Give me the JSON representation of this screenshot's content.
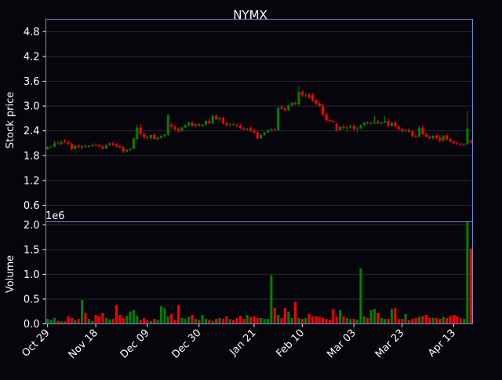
{
  "chart_data": {
    "type": "candlestick",
    "title": "NYMX",
    "price_panel": {
      "ylabel": "Stock price",
      "ylim": [
        0.2,
        5.1
      ],
      "yticks": [
        "0.6",
        "1.2",
        "1.8",
        "2.4",
        "3.0",
        "3.6",
        "4.2",
        "4.8"
      ],
      "grid": true
    },
    "volume_panel": {
      "ylabel": "Volume",
      "ylim": [
        0,
        2.06
      ],
      "scale_label": "1e6",
      "yticks": [
        "0.0",
        "0.5",
        "1.0",
        "1.5",
        "2.0"
      ],
      "grid": true
    },
    "x_tick_labels": [
      "Oct 29",
      "Nov 18",
      "Dec 09",
      "Dec 30",
      "Jan 21",
      "Feb 10",
      "Mar 03",
      "Mar 23",
      "Apr 13"
    ],
    "x_tick_index": [
      0,
      14,
      29,
      44,
      60,
      74,
      89,
      103,
      118
    ],
    "up_color": "#008000",
    "down_color": "#ff0000",
    "candles": [
      [
        1.96,
        2.03,
        1.94,
        2.01
      ],
      [
        2.01,
        2.05,
        1.98,
        2.02
      ],
      [
        2.02,
        2.15,
        2.0,
        2.1
      ],
      [
        2.1,
        2.16,
        2.07,
        2.08
      ],
      [
        2.08,
        2.16,
        2.05,
        2.14
      ],
      [
        2.14,
        2.2,
        2.1,
        2.12
      ],
      [
        2.12,
        2.18,
        2.06,
        2.08
      ],
      [
        2.08,
        2.12,
        1.93,
        1.96
      ],
      [
        1.96,
        2.06,
        1.94,
        2.04
      ],
      [
        2.04,
        2.08,
        1.98,
        2.0
      ],
      [
        2.0,
        2.05,
        1.96,
        2.03
      ],
      [
        2.03,
        2.08,
        2.0,
        2.01
      ],
      [
        2.01,
        2.05,
        1.98,
        2.04
      ],
      [
        2.04,
        2.1,
        2.0,
        2.06
      ],
      [
        2.06,
        2.1,
        2.02,
        2.05
      ],
      [
        2.05,
        2.09,
        2.0,
        2.02
      ],
      [
        2.02,
        2.06,
        1.95,
        1.97
      ],
      [
        1.97,
        2.08,
        1.96,
        2.06
      ],
      [
        2.06,
        2.12,
        2.03,
        2.1
      ],
      [
        2.1,
        2.14,
        2.04,
        2.06
      ],
      [
        2.06,
        2.1,
        2.0,
        2.03
      ],
      [
        2.03,
        2.06,
        1.97,
        2.0
      ],
      [
        2.0,
        2.04,
        1.86,
        1.9
      ],
      [
        1.9,
        1.96,
        1.88,
        1.94
      ],
      [
        1.94,
        1.98,
        1.9,
        1.96
      ],
      [
        1.96,
        2.24,
        1.95,
        2.22
      ],
      [
        2.2,
        2.55,
        2.18,
        2.48
      ],
      [
        2.48,
        2.56,
        2.28,
        2.32
      ],
      [
        2.32,
        2.38,
        2.2,
        2.25
      ],
      [
        2.25,
        2.3,
        2.18,
        2.22
      ],
      [
        2.22,
        2.32,
        2.16,
        2.3
      ],
      [
        2.3,
        2.34,
        2.18,
        2.2
      ],
      [
        2.2,
        2.26,
        2.15,
        2.24
      ],
      [
        2.24,
        2.32,
        2.2,
        2.28
      ],
      [
        2.28,
        2.34,
        2.24,
        2.3
      ],
      [
        2.3,
        2.8,
        2.28,
        2.78
      ],
      [
        2.55,
        2.6,
        2.45,
        2.5
      ],
      [
        2.5,
        2.54,
        2.4,
        2.44
      ],
      [
        2.44,
        2.48,
        2.36,
        2.4
      ],
      [
        2.4,
        2.5,
        2.38,
        2.48
      ],
      [
        2.48,
        2.56,
        2.46,
        2.54
      ],
      [
        2.54,
        2.62,
        2.5,
        2.6
      ],
      [
        2.6,
        2.64,
        2.5,
        2.52
      ],
      [
        2.52,
        2.58,
        2.48,
        2.56
      ],
      [
        2.56,
        2.6,
        2.5,
        2.52
      ],
      [
        2.52,
        2.56,
        2.48,
        2.55
      ],
      [
        2.55,
        2.68,
        2.52,
        2.64
      ],
      [
        2.64,
        2.7,
        2.55,
        2.58
      ],
      [
        2.58,
        2.8,
        2.56,
        2.76
      ],
      [
        2.76,
        2.8,
        2.66,
        2.68
      ],
      [
        2.68,
        2.74,
        2.62,
        2.72
      ],
      [
        2.72,
        2.76,
        2.56,
        2.58
      ],
      [
        2.58,
        2.62,
        2.5,
        2.54
      ],
      [
        2.54,
        2.6,
        2.5,
        2.56
      ],
      [
        2.56,
        2.6,
        2.52,
        2.54
      ],
      [
        2.54,
        2.58,
        2.48,
        2.52
      ],
      [
        2.52,
        2.56,
        2.44,
        2.46
      ],
      [
        2.46,
        2.5,
        2.4,
        2.44
      ],
      [
        2.44,
        2.48,
        2.4,
        2.46
      ],
      [
        2.46,
        2.5,
        2.38,
        2.4
      ],
      [
        2.4,
        2.46,
        2.34,
        2.36
      ],
      [
        2.36,
        2.4,
        2.18,
        2.22
      ],
      [
        2.22,
        2.32,
        2.2,
        2.3
      ],
      [
        2.3,
        2.38,
        2.28,
        2.36
      ],
      [
        2.36,
        2.44,
        2.34,
        2.42
      ],
      [
        2.42,
        2.48,
        2.38,
        2.44
      ],
      [
        2.44,
        2.48,
        2.4,
        2.42
      ],
      [
        2.42,
        2.98,
        2.4,
        2.96
      ],
      [
        2.98,
        3.02,
        2.9,
        2.94
      ],
      [
        2.94,
        2.98,
        2.86,
        2.9
      ],
      [
        2.9,
        3.04,
        2.88,
        3.02
      ],
      [
        3.02,
        3.1,
        2.98,
        3.08
      ],
      [
        3.08,
        3.12,
        3.02,
        3.04
      ],
      [
        3.04,
        3.48,
        3.02,
        3.34
      ],
      [
        3.34,
        3.38,
        3.22,
        3.26
      ],
      [
        3.26,
        3.3,
        3.2,
        3.28
      ],
      [
        3.28,
        3.32,
        3.18,
        3.2
      ],
      [
        3.26,
        3.3,
        3.1,
        3.14
      ],
      [
        3.14,
        3.18,
        3.02,
        3.06
      ],
      [
        3.06,
        3.1,
        2.98,
        3.0
      ],
      [
        3.0,
        3.06,
        2.75,
        2.8
      ],
      [
        2.8,
        2.84,
        2.62,
        2.66
      ],
      [
        2.66,
        2.7,
        2.6,
        2.64
      ],
      [
        2.64,
        2.68,
        2.6,
        2.62
      ],
      [
        2.56,
        2.6,
        2.38,
        2.42
      ],
      [
        2.42,
        2.52,
        2.4,
        2.5
      ],
      [
        2.5,
        2.56,
        2.44,
        2.46
      ],
      [
        2.46,
        2.52,
        2.36,
        2.48
      ],
      [
        2.48,
        2.54,
        2.44,
        2.52
      ],
      [
        2.52,
        2.56,
        2.4,
        2.44
      ],
      [
        2.44,
        2.5,
        2.36,
        2.46
      ],
      [
        2.46,
        2.56,
        2.44,
        2.54
      ],
      [
        2.54,
        2.62,
        2.5,
        2.6
      ],
      [
        2.6,
        2.64,
        2.54,
        2.58
      ],
      [
        2.58,
        2.62,
        2.54,
        2.6
      ],
      [
        2.6,
        2.76,
        2.56,
        2.62
      ],
      [
        2.62,
        2.66,
        2.56,
        2.58
      ],
      [
        2.58,
        2.62,
        2.54,
        2.6
      ],
      [
        2.6,
        2.76,
        2.58,
        2.64
      ],
      [
        2.64,
        2.68,
        2.5,
        2.52
      ],
      [
        2.52,
        2.62,
        2.5,
        2.6
      ],
      [
        2.6,
        2.64,
        2.48,
        2.5
      ],
      [
        2.5,
        2.54,
        2.42,
        2.44
      ],
      [
        2.44,
        2.48,
        2.36,
        2.4
      ],
      [
        2.4,
        2.46,
        2.36,
        2.42
      ],
      [
        2.42,
        2.48,
        2.36,
        2.38
      ],
      [
        2.38,
        2.42,
        2.24,
        2.28
      ],
      [
        2.28,
        2.32,
        2.22,
        2.26
      ],
      [
        2.26,
        2.52,
        2.24,
        2.48
      ],
      [
        2.48,
        2.54,
        2.3,
        2.32
      ],
      [
        2.32,
        2.36,
        2.24,
        2.26
      ],
      [
        2.26,
        2.3,
        2.18,
        2.22
      ],
      [
        2.22,
        2.3,
        2.18,
        2.28
      ],
      [
        2.28,
        2.32,
        2.2,
        2.24
      ],
      [
        2.24,
        2.3,
        2.12,
        2.16
      ],
      [
        2.16,
        2.3,
        2.14,
        2.28
      ],
      [
        2.28,
        2.32,
        2.16,
        2.2
      ],
      [
        2.2,
        2.24,
        2.12,
        2.14
      ],
      [
        2.14,
        2.18,
        2.06,
        2.1
      ],
      [
        2.1,
        2.14,
        2.06,
        2.08
      ],
      [
        2.08,
        2.12,
        2.04,
        2.06
      ],
      [
        2.06,
        2.1,
        2.02,
        2.08
      ],
      [
        2.08,
        2.88,
        2.06,
        2.46
      ],
      [
        2.16,
        2.2,
        2.08,
        2.12
      ]
    ],
    "volume": [
      0.1,
      0.08,
      0.12,
      0.06,
      0.05,
      0.05,
      0.15,
      0.12,
      0.08,
      0.1,
      0.48,
      0.22,
      0.1,
      0.06,
      0.18,
      0.15,
      0.22,
      0.12,
      0.09,
      0.1,
      0.38,
      0.18,
      0.12,
      0.16,
      0.25,
      0.28,
      0.16,
      0.08,
      0.12,
      0.07,
      0.06,
      0.1,
      0.08,
      0.36,
      0.32,
      0.15,
      0.2,
      0.08,
      0.38,
      0.12,
      0.1,
      0.14,
      0.18,
      0.1,
      0.08,
      0.18,
      0.1,
      0.08,
      0.06,
      0.1,
      0.12,
      0.1,
      0.15,
      0.1,
      0.08,
      0.12,
      0.16,
      0.1,
      0.18,
      0.14,
      0.15,
      0.12,
      0.12,
      0.1,
      0.1,
      0.98,
      0.33,
      0.18,
      0.12,
      0.32,
      0.25,
      0.12,
      0.44,
      0.12,
      0.1,
      0.12,
      0.2,
      0.15,
      0.15,
      0.14,
      0.12,
      0.1,
      0.08,
      0.3,
      0.14,
      0.28,
      0.15,
      0.12,
      0.1,
      0.1,
      0.08,
      1.12,
      0.15,
      0.12,
      0.28,
      0.3,
      0.22,
      0.12,
      0.1,
      0.1,
      0.3,
      0.32,
      0.1,
      0.1,
      0.2,
      0.08,
      0.1,
      0.12,
      0.14,
      0.16,
      0.18,
      0.12,
      0.12,
      0.12,
      0.1,
      0.14,
      0.12,
      0.16,
      0.18,
      0.15,
      0.12,
      0.1,
      2.06,
      1.52
    ]
  }
}
